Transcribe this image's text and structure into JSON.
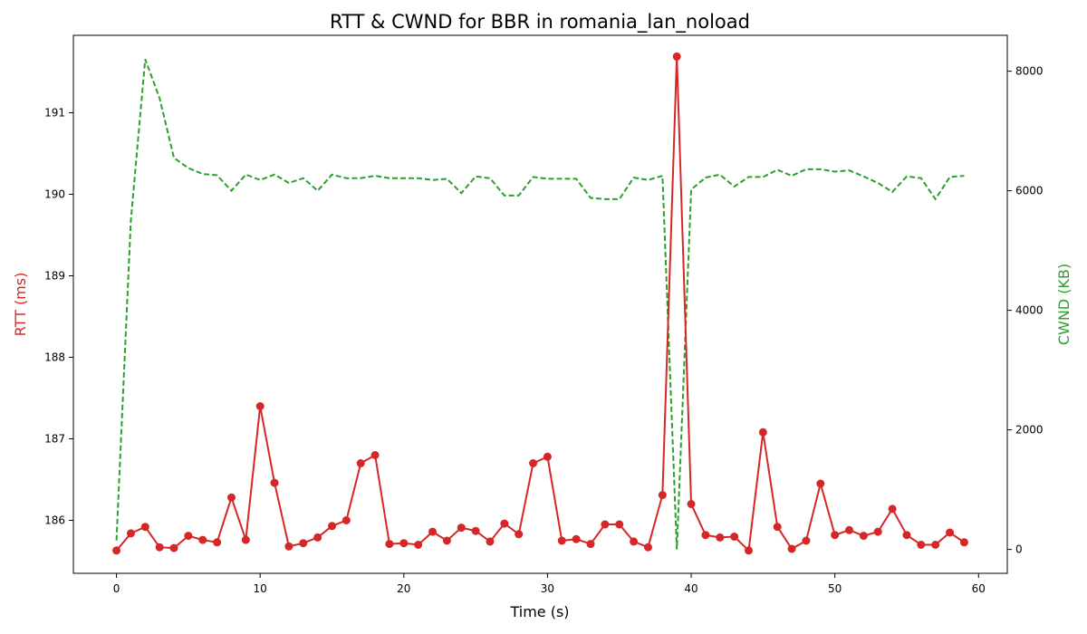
{
  "chart_data": {
    "type": "line",
    "title": "RTT & CWND for BBR in romania_lan_noload",
    "xlabel": "Time (s)",
    "ylabel_left": "RTT (ms)",
    "ylabel_right": "CWND (KB)",
    "xlim": [
      -3,
      62
    ],
    "ylim_left": [
      185.35,
      191.95
    ],
    "ylim_right": [
      -400,
      8600
    ],
    "x_ticks": [
      0,
      10,
      20,
      30,
      40,
      50,
      60
    ],
    "y_left_ticks": [
      186,
      187,
      188,
      189,
      190,
      191
    ],
    "y_right_ticks": [
      0,
      2000,
      4000,
      6000,
      8000
    ],
    "grid": false,
    "colors": {
      "rtt": "#d62728",
      "cwnd": "#2ca02c"
    },
    "x": [
      0,
      1,
      2,
      3,
      4,
      5,
      6,
      7,
      8,
      9,
      10,
      11,
      12,
      13,
      14,
      15,
      16,
      17,
      18,
      19,
      20,
      21,
      22,
      23,
      24,
      25,
      26,
      27,
      28,
      29,
      30,
      31,
      32,
      33,
      34,
      35,
      36,
      37,
      38,
      39,
      40,
      41,
      42,
      43,
      44,
      45,
      46,
      47,
      48,
      49,
      50,
      51,
      52,
      53,
      54,
      55,
      56,
      57,
      58,
      59
    ],
    "series": [
      {
        "name": "RTT (ms)",
        "axis": "left",
        "style": "solid-with-markers",
        "values": [
          185.63,
          185.84,
          185.92,
          185.67,
          185.66,
          185.81,
          185.76,
          185.73,
          186.28,
          185.76,
          187.4,
          186.46,
          185.68,
          185.72,
          185.79,
          185.93,
          186.0,
          186.7,
          186.8,
          185.71,
          185.72,
          185.7,
          185.86,
          185.75,
          185.91,
          185.87,
          185.74,
          185.96,
          185.83,
          186.7,
          186.78,
          185.75,
          185.77,
          185.71,
          185.95,
          185.95,
          185.74,
          185.67,
          186.31,
          191.69,
          186.2,
          185.82,
          185.79,
          185.8,
          185.63,
          187.08,
          185.92,
          185.65,
          185.75,
          186.45,
          185.82,
          185.88,
          185.81,
          185.86,
          186.14,
          185.82,
          185.7,
          185.7,
          185.85,
          185.73
        ]
      },
      {
        "name": "CWND (KB)",
        "axis": "right",
        "style": "dashed",
        "values": [
          150,
          5500,
          8200,
          7550,
          6550,
          6380,
          6280,
          6260,
          6000,
          6270,
          6180,
          6270,
          6130,
          6210,
          6000,
          6270,
          6210,
          6210,
          6250,
          6210,
          6210,
          6210,
          6180,
          6200,
          5960,
          6240,
          6210,
          5920,
          5920,
          6230,
          6200,
          6200,
          6200,
          5880,
          5860,
          5860,
          6220,
          6180,
          6250,
          0,
          6020,
          6220,
          6270,
          6070,
          6230,
          6230,
          6350,
          6250,
          6360,
          6360,
          6320,
          6340,
          6240,
          6130,
          5980,
          6240,
          6210,
          5860,
          6230,
          6250
        ]
      }
    ]
  }
}
